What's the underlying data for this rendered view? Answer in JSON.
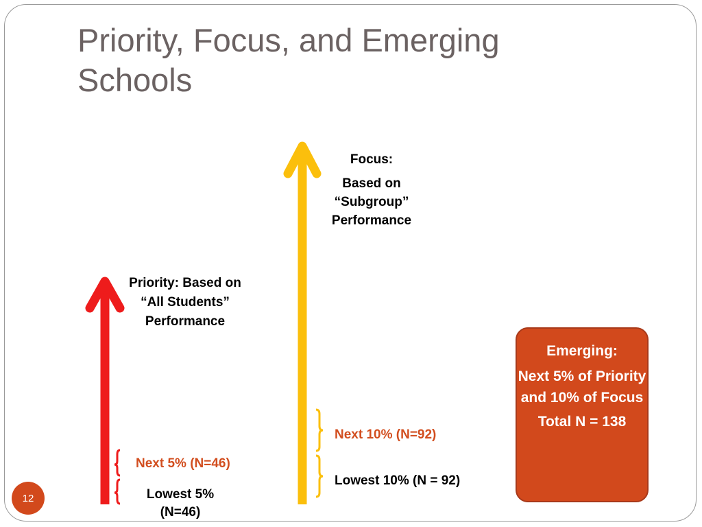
{
  "title": "Priority, Focus, and Emerging Schools",
  "focus": {
    "heading": "Focus:",
    "description": "Based on “Subgroup” Performance",
    "tiers": {
      "next": "Next 10% (N=92)",
      "lowest": "Lowest 10% (N = 92)"
    }
  },
  "priority": {
    "description": "Priority:  Based on “All Students” Performance",
    "tiers": {
      "next": "Next 5% (N=46)",
      "lowest": "Lowest 5% (N=46)"
    }
  },
  "emerging": {
    "heading": "Emerging:",
    "description": "Next 5% of Priority and 10% of Focus",
    "total": "Total N = 138"
  },
  "slide_number": "12",
  "colors": {
    "priority_arrow": "#ee1c1c",
    "focus_arrow": "#fbbf0c",
    "emerging_box": "#d2491c",
    "tier_highlight": "#d24e1f",
    "title": "#6b6262"
  }
}
